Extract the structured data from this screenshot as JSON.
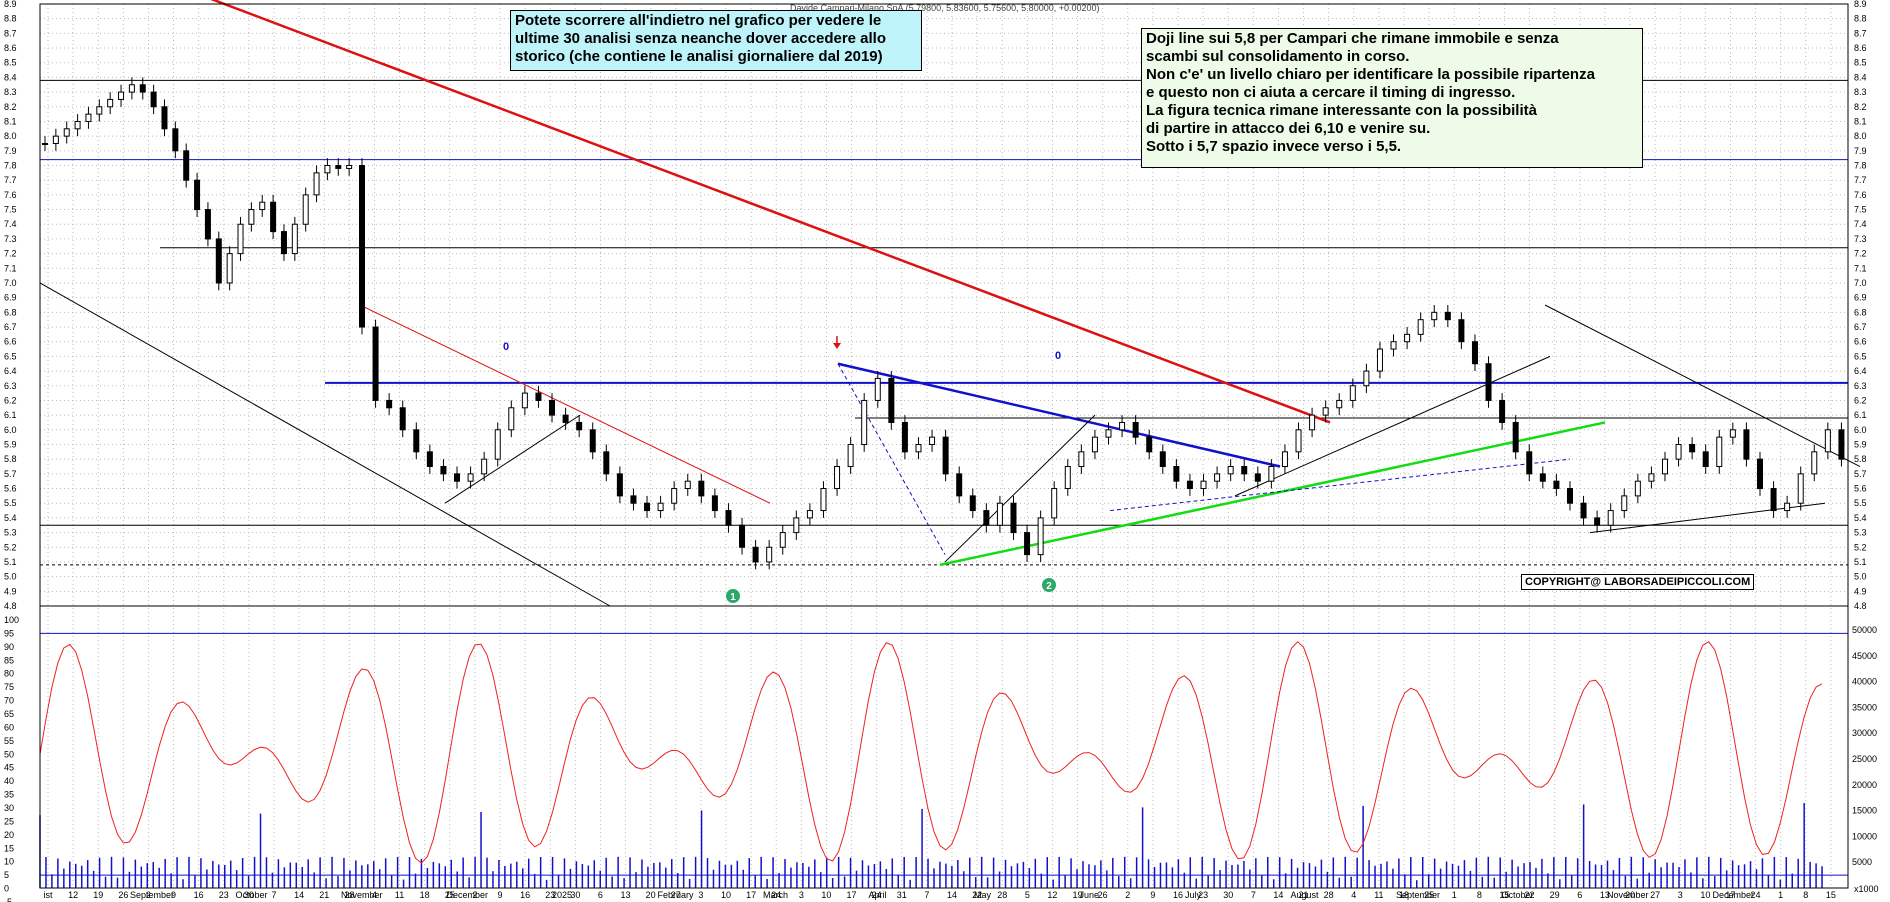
{
  "header": {
    "instrument": "Davide Campari-Milano SpA",
    "ohlc": "(5.79800, 5.83600, 5.75600, 5.80000, +0.00200)"
  },
  "notes": {
    "history": [
      "Potete scorrere all'indietro nel grafico per vedere le",
      "ultime 30 analisi senza neanche dover accedere allo",
      "storico (che contiene le analisi giornaliere dal 2019)"
    ],
    "analysis": [
      "Doji line sui 5,8 per Campari che rimane immobile e senza",
      "scambi sul consolidamento in corso.",
      "Non c'e' un livello chiaro per identificare la possibile ripartenza",
      "e questo non ci aiuta a cercare il timing di ingresso.",
      "La figura tecnica rimane interessante con la possibilità",
      "di partire in attacco dei 6,10 e venire su.",
      "Sotto i 5,7 spazio invece verso i 5,5."
    ]
  },
  "copyright": "COPYRIGHT@ LABORSADEIPICCOLI.COM",
  "markers": {
    "one": "1",
    "two": "2",
    "signal": "0"
  },
  "colors": {
    "candle": "#000000",
    "red_trend": "#dd1111",
    "blue_trend": "#1111cc",
    "green_trend": "#11dd11",
    "oscillator": "#ee2222",
    "volume": "#1111cc",
    "grid": "#bbbbbb"
  },
  "chart_data": {
    "type": "candlestick",
    "price_axis": {
      "min": 4.8,
      "max": 8.9,
      "step": 0.1
    },
    "oscillator_axis": {
      "min": -5,
      "max": 100,
      "step": 5
    },
    "volume_axis": {
      "min": 0,
      "max": 50000,
      "step": 5000,
      "scale_label": "x1000"
    },
    "date_labels": [
      "ist",
      "12",
      "19",
      "26",
      "2",
      "9",
      "16",
      "23",
      "30",
      "7",
      "14",
      "21",
      "28",
      "4",
      "11",
      "18",
      "25",
      "2",
      "9",
      "16",
      "23",
      "30",
      "6",
      "13",
      "20",
      "27",
      "3",
      "10",
      "17",
      "24",
      "3",
      "10",
      "17",
      "24",
      "31",
      "7",
      "14",
      "22",
      "28",
      "5",
      "12",
      "19",
      "26",
      "2",
      "9",
      "16",
      "23",
      "30",
      "7",
      "14",
      "21",
      "28",
      "4",
      "11",
      "18",
      "25",
      "1",
      "8",
      "15",
      "22",
      "29",
      "6",
      "13",
      "20",
      "27",
      "3",
      "10",
      "17",
      "24",
      "1",
      "8",
      "15"
    ],
    "month_labels": [
      "September",
      "October",
      "November",
      "December",
      "2025",
      "February",
      "March",
      "April",
      "May",
      "June",
      "July",
      "August",
      "September",
      "October",
      "November",
      "December"
    ],
    "horizontal_levels": [
      8.38,
      7.84,
      7.24,
      6.32,
      6.08,
      5.35,
      5.08
    ],
    "close": [
      7.95,
      8.0,
      8.05,
      8.1,
      8.15,
      8.2,
      8.25,
      8.3,
      8.35,
      8.3,
      8.2,
      8.05,
      7.9,
      7.7,
      7.5,
      7.3,
      7.0,
      7.2,
      7.4,
      7.5,
      7.55,
      7.35,
      7.2,
      7.4,
      7.6,
      7.75,
      7.8,
      7.78,
      7.8,
      6.7,
      6.2,
      6.15,
      6.0,
      5.85,
      5.75,
      5.7,
      5.65,
      5.7,
      5.8,
      6.0,
      6.15,
      6.25,
      6.2,
      6.1,
      6.05,
      6.0,
      5.85,
      5.7,
      5.55,
      5.5,
      5.45,
      5.5,
      5.6,
      5.65,
      5.55,
      5.45,
      5.35,
      5.2,
      5.1,
      5.2,
      5.3,
      5.4,
      5.45,
      5.6,
      5.75,
      5.9,
      6.2,
      6.35,
      6.05,
      5.85,
      5.9,
      5.95,
      5.7,
      5.55,
      5.45,
      5.35,
      5.5,
      5.3,
      5.15,
      5.4,
      5.6,
      5.75,
      5.85,
      5.95,
      6.0,
      6.05,
      5.95,
      5.85,
      5.75,
      5.65,
      5.6,
      5.65,
      5.7,
      5.75,
      5.7,
      5.65,
      5.75,
      5.85,
      6.0,
      6.1,
      6.15,
      6.2,
      6.3,
      6.4,
      6.55,
      6.6,
      6.65,
      6.75,
      6.8,
      6.75,
      6.6,
      6.45,
      6.2,
      6.05,
      5.85,
      5.7,
      5.65,
      5.6,
      5.5,
      5.4,
      5.35,
      5.45,
      5.55,
      5.65,
      5.7,
      5.8,
      5.9,
      5.85,
      5.75,
      5.95,
      6.0,
      5.8,
      5.6,
      5.45,
      5.5,
      5.7,
      5.85,
      6.0,
      5.8
    ]
  }
}
